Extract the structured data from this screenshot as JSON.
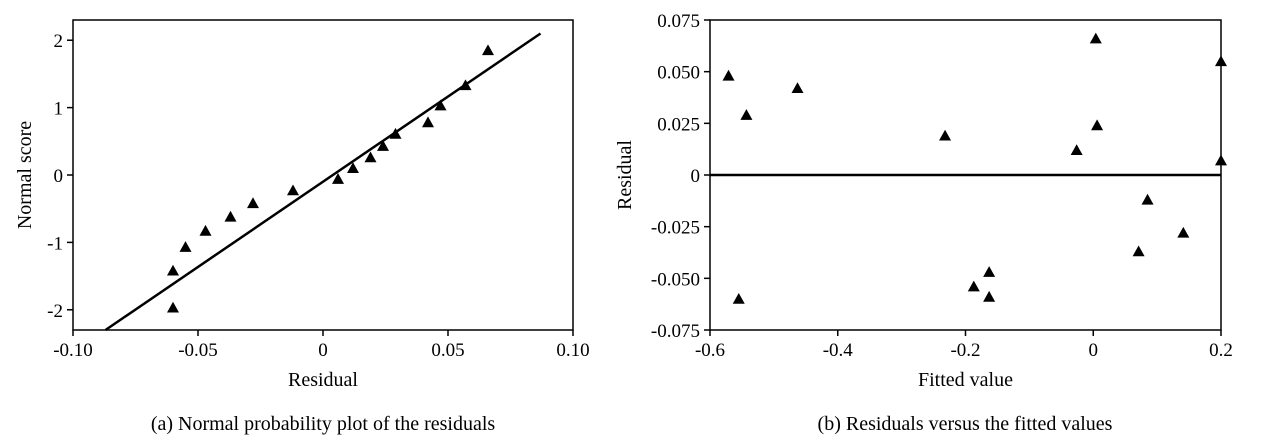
{
  "chart_data": [
    {
      "type": "scatter",
      "caption": "(a) Normal probability plot of the residuals",
      "xlabel": "Residual",
      "ylabel": "Normal score",
      "xlim": [
        -0.1,
        0.1
      ],
      "ylim": [
        -2.3,
        2.3
      ],
      "xticks": [
        -0.1,
        -0.05,
        0,
        0.05,
        0.1
      ],
      "xtick_labels": [
        "-0.10",
        "-0.05",
        "0",
        "0.05",
        "0.10"
      ],
      "yticks": [
        2,
        1,
        0,
        -1,
        -2
      ],
      "ytick_labels": [
        "2",
        "1",
        "0",
        "-1",
        "-2"
      ],
      "marker": "triangle",
      "grid": false,
      "points": [
        {
          "x": -0.06,
          "y": -1.97
        },
        {
          "x": -0.06,
          "y": -1.42
        },
        {
          "x": -0.055,
          "y": -1.07
        },
        {
          "x": -0.047,
          "y": -0.83
        },
        {
          "x": -0.037,
          "y": -0.62
        },
        {
          "x": -0.028,
          "y": -0.42
        },
        {
          "x": -0.012,
          "y": -0.23
        },
        {
          "x": 0.006,
          "y": -0.06
        },
        {
          "x": 0.012,
          "y": 0.1
        },
        {
          "x": 0.019,
          "y": 0.26
        },
        {
          "x": 0.024,
          "y": 0.43
        },
        {
          "x": 0.029,
          "y": 0.61
        },
        {
          "x": 0.042,
          "y": 0.78
        },
        {
          "x": 0.047,
          "y": 1.03
        },
        {
          "x": 0.057,
          "y": 1.33
        },
        {
          "x": 0.066,
          "y": 1.85
        }
      ],
      "reference_line": {
        "x1": -0.087,
        "y1": -2.3,
        "x2": 0.087,
        "y2": 2.1
      }
    },
    {
      "type": "scatter",
      "caption": "(b) Residuals versus the fitted values",
      "xlabel": "Fitted value",
      "ylabel": "Residual",
      "xlim": [
        -0.6,
        0.2
      ],
      "ylim": [
        -0.075,
        0.075
      ],
      "xticks": [
        -0.6,
        -0.4,
        -0.2,
        0,
        0.2
      ],
      "xtick_labels": [
        "-0.6",
        "-0.4",
        "-0.2",
        "0",
        "0.2"
      ],
      "yticks": [
        0.075,
        0.05,
        0.025,
        0,
        -0.025,
        -0.05,
        -0.075
      ],
      "ytick_labels": [
        "0.075",
        "0.050",
        "0.025",
        "0",
        "-0.025",
        "-0.050",
        "-0.075"
      ],
      "marker": "triangle",
      "grid": false,
      "points": [
        {
          "x": -0.571,
          "y": 0.048
        },
        {
          "x": -0.543,
          "y": 0.029
        },
        {
          "x": -0.555,
          "y": -0.06
        },
        {
          "x": -0.463,
          "y": 0.042
        },
        {
          "x": -0.232,
          "y": 0.019
        },
        {
          "x": -0.187,
          "y": -0.054
        },
        {
          "x": -0.163,
          "y": -0.047
        },
        {
          "x": -0.163,
          "y": -0.059
        },
        {
          "x": -0.026,
          "y": 0.012
        },
        {
          "x": 0.004,
          "y": 0.066
        },
        {
          "x": 0.006,
          "y": 0.024
        },
        {
          "x": 0.071,
          "y": -0.037
        },
        {
          "x": 0.085,
          "y": -0.012
        },
        {
          "x": 0.141,
          "y": -0.028
        },
        {
          "x": 0.2,
          "y": 0.055
        },
        {
          "x": 0.2,
          "y": 0.007
        }
      ],
      "reference_line": {
        "y": 0
      }
    }
  ]
}
